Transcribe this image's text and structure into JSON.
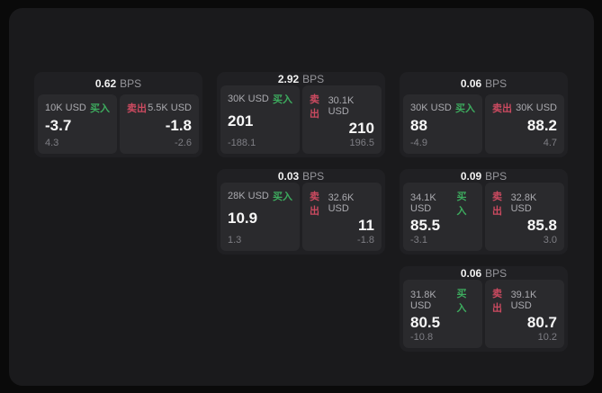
{
  "labels": {
    "bps_unit": "BPS",
    "buy": "买入",
    "sell": "卖出"
  },
  "colors": {
    "page_bg": "#0a0a0a",
    "panel_bg": "#1a1a1c",
    "card_bg": "#202023",
    "tile_bg": "#2a2a2d",
    "buy_green": "#3dab5e",
    "sell_red": "#cc4a60",
    "value_white": "#f7f7f7",
    "label_gray": "#aaaaaf",
    "muted_gray": "#7e7e84"
  },
  "cards": [
    {
      "bps": "0.62",
      "buy": {
        "amount": "10K USD",
        "price": "-3.7",
        "delta": "4.3"
      },
      "sell": {
        "amount": "5.5K USD",
        "price": "-1.8",
        "delta": "-2.6"
      }
    },
    {
      "bps": "2.92",
      "buy": {
        "amount": "30K USD",
        "price": "201",
        "delta": "-188.1"
      },
      "sell": {
        "amount": "30.1K USD",
        "price": "210",
        "delta": "196.5"
      }
    },
    {
      "bps": "0.06",
      "buy": {
        "amount": "30K USD",
        "price": "88",
        "delta": "-4.9"
      },
      "sell": {
        "amount": "30K USD",
        "price": "88.2",
        "delta": "4.7"
      }
    },
    {
      "bps": "0.03",
      "buy": {
        "amount": "28K USD",
        "price": "10.9",
        "delta": "1.3"
      },
      "sell": {
        "amount": "32.6K USD",
        "price": "11",
        "delta": "-1.8"
      }
    },
    {
      "bps": "0.09",
      "buy": {
        "amount": "34.1K USD",
        "price": "85.5",
        "delta": "-3.1"
      },
      "sell": {
        "amount": "32.8K USD",
        "price": "85.8",
        "delta": "3.0"
      }
    },
    {
      "bps": "0.06",
      "buy": {
        "amount": "31.8K USD",
        "price": "80.5",
        "delta": "-10.8"
      },
      "sell": {
        "amount": "39.1K USD",
        "price": "80.7",
        "delta": "10.2"
      }
    }
  ]
}
